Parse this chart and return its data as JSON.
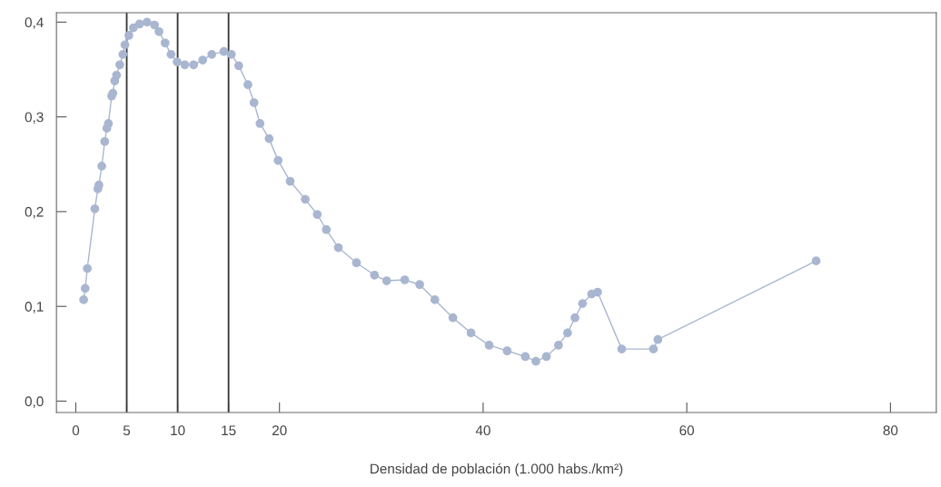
{
  "chart_data": {
    "type": "line",
    "xlabel": "Densidad de población (1.000 habs./km²)",
    "series": [
      {
        "color": "#a9b6d0",
        "marker": "circle",
        "line_style": "solid",
        "x": [
          0.77,
          0.92,
          1.13,
          1.87,
          2.16,
          2.27,
          2.55,
          2.84,
          3.05,
          3.2,
          3.52,
          3.64,
          3.82,
          4.0,
          4.32,
          4.62,
          4.82,
          5.21,
          5.65,
          6.25,
          6.99,
          7.73,
          8.17,
          8.77,
          9.35,
          9.95,
          10.7,
          11.57,
          12.46,
          13.35,
          14.54,
          15.28,
          16.0,
          16.9,
          17.5,
          18.09,
          18.98,
          19.87,
          21.05,
          22.53,
          23.71,
          24.6,
          25.78,
          27.56,
          29.33,
          30.52,
          32.3,
          33.77,
          35.26,
          37.03,
          38.81,
          40.59,
          42.36,
          44.14,
          45.18,
          46.21,
          47.4,
          48.29,
          49.02,
          49.76,
          50.65,
          51.24,
          53.61,
          56.72,
          57.16,
          72.7
        ],
        "values": [
          0.107,
          0.119,
          0.14,
          0.203,
          0.224,
          0.228,
          0.248,
          0.274,
          0.288,
          0.293,
          0.322,
          0.325,
          0.338,
          0.344,
          0.355,
          0.366,
          0.376,
          0.386,
          0.394,
          0.398,
          0.4,
          0.397,
          0.39,
          0.378,
          0.366,
          0.358,
          0.355,
          0.355,
          0.36,
          0.366,
          0.369,
          0.366,
          0.354,
          0.334,
          0.315,
          0.293,
          0.277,
          0.254,
          0.232,
          0.213,
          0.197,
          0.181,
          0.162,
          0.146,
          0.133,
          0.127,
          0.128,
          0.123,
          0.107,
          0.088,
          0.072,
          0.059,
          0.053,
          0.047,
          0.042,
          0.047,
          0.059,
          0.072,
          0.088,
          0.103,
          0.113,
          0.115,
          0.055,
          0.055,
          0.065,
          0.148
        ]
      }
    ],
    "xlim": [
      -1.9,
      84.5
    ],
    "ylim": [
      -0.012,
      0.41
    ],
    "xticks": [
      0,
      5,
      10,
      15,
      20,
      40,
      60,
      80
    ],
    "yticks": [
      {
        "value": 0,
        "label": "0,0"
      },
      {
        "value": 0.1,
        "label": "0,1"
      },
      {
        "value": 0.2,
        "label": "0,2"
      },
      {
        "value": 0.3,
        "label": "0,3"
      },
      {
        "value": 0.4,
        "label": "0,4"
      }
    ],
    "ref_lines": [
      {
        "axis": "x",
        "value": 5,
        "color": "#333333"
      },
      {
        "axis": "x",
        "value": 10,
        "color": "#333333"
      },
      {
        "axis": "x",
        "value": 15,
        "color": "#333333"
      }
    ],
    "grid": false
  }
}
